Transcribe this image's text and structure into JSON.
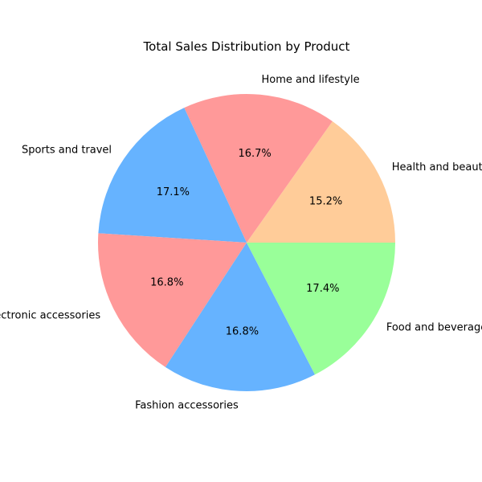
{
  "chart_data": {
    "type": "pie",
    "title": "Total Sales Distribution by Product",
    "categories": [
      "Health and beauty",
      "Home and lifestyle",
      "Sports and travel",
      "Electronic accessories",
      "Fashion accessories",
      "Food and beverages"
    ],
    "values": [
      15.2,
      16.7,
      17.1,
      16.8,
      16.8,
      17.4
    ],
    "value_labels": [
      "15.2%",
      "16.7%",
      "17.1%",
      "16.8%",
      "16.8%",
      "17.4%"
    ],
    "colors": [
      "#ffcc99",
      "#ff9999",
      "#66b3ff",
      "#ff9999",
      "#66b3ff",
      "#99ff99"
    ],
    "start_angle_deg": 0,
    "direction": "counterclockwise",
    "legend": "none"
  }
}
